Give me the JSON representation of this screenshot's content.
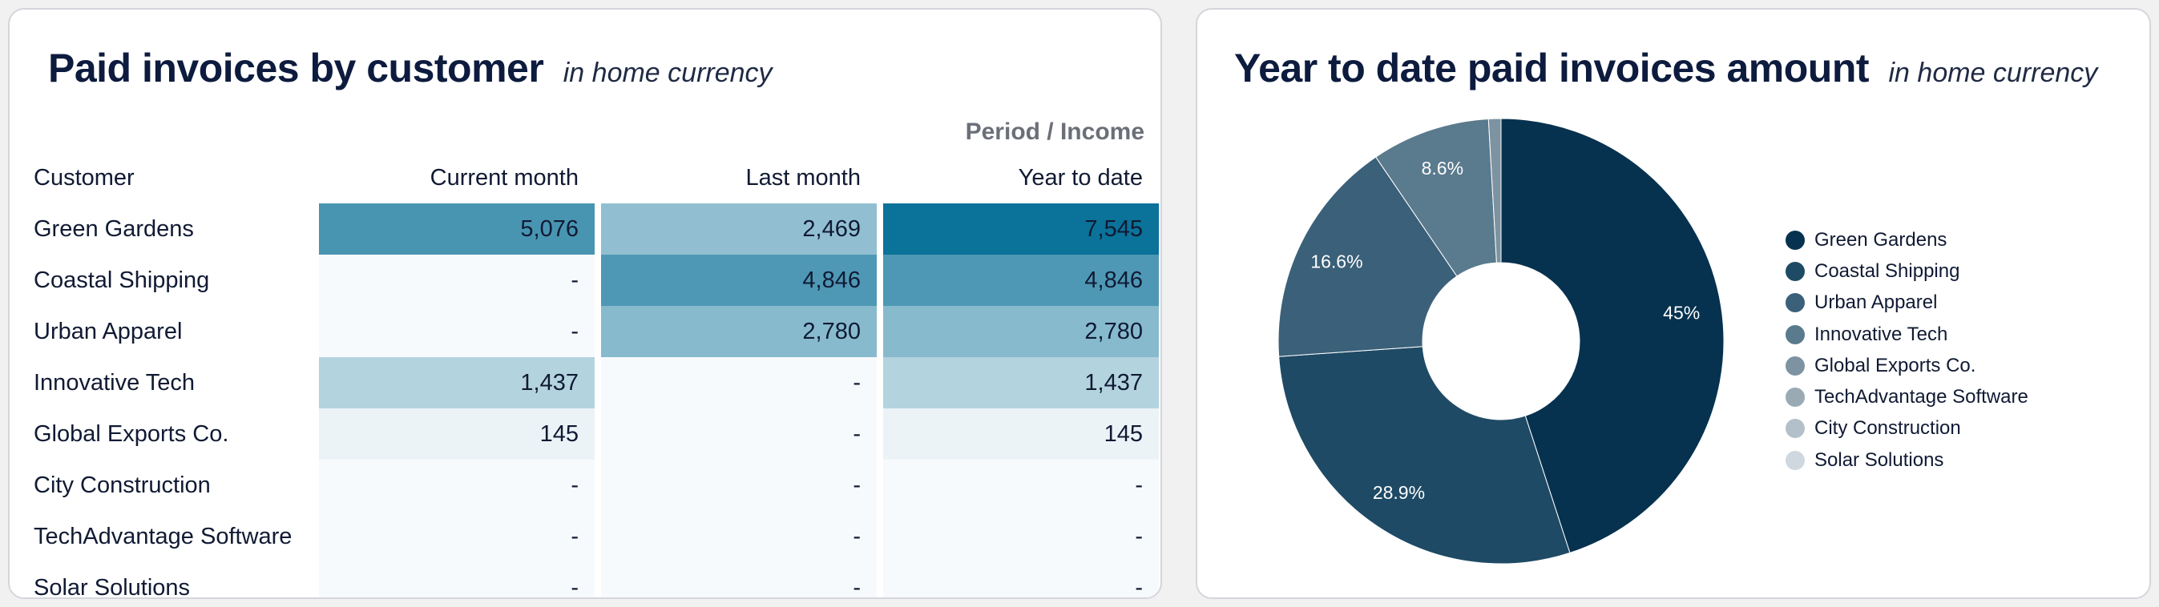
{
  "left_card": {
    "title": "Paid invoices by customer",
    "subtitle": "in home currency",
    "period_label": "Period / Income",
    "columns": [
      "Customer",
      "Current month",
      "Last month",
      "Year to date"
    ],
    "rows": [
      {
        "customer": "Green Gardens",
        "current": "5,076",
        "last": "2,469",
        "ytd": "7,545"
      },
      {
        "customer": "Coastal Shipping",
        "current": "-",
        "last": "4,846",
        "ytd": "4,846"
      },
      {
        "customer": "Urban Apparel",
        "current": "-",
        "last": "2,780",
        "ytd": "2,780"
      },
      {
        "customer": "Innovative Tech",
        "current": "1,437",
        "last": "-",
        "ytd": "1,437"
      },
      {
        "customer": "Global Exports Co.",
        "current": "145",
        "last": "-",
        "ytd": "145"
      },
      {
        "customer": "City Construction",
        "current": "-",
        "last": "-",
        "ytd": "-"
      },
      {
        "customer": "TechAdvantage Software",
        "current": "-",
        "last": "-",
        "ytd": "-"
      },
      {
        "customer": "Solar Solutions",
        "current": "-",
        "last": "-",
        "ytd": "-"
      }
    ]
  },
  "right_card": {
    "title": "Year to date paid invoices amount",
    "subtitle": "in home currency"
  },
  "colors": {
    "heat_low": "#f7fafc",
    "heat_high": "#0b7299",
    "text_dark": "#0d1b3e"
  },
  "chart_data": [
    {
      "type": "table",
      "title": "Paid invoices by customer",
      "columns": [
        "Current month",
        "Last month",
        "Year to date"
      ],
      "categories": [
        "Green Gardens",
        "Coastal Shipping",
        "Urban Apparel",
        "Innovative Tech",
        "Global Exports Co.",
        "City Construction",
        "TechAdvantage Software",
        "Solar Solutions"
      ],
      "series": [
        {
          "name": "Current month",
          "values": [
            5076,
            0,
            0,
            1437,
            145,
            0,
            0,
            0
          ]
        },
        {
          "name": "Last month",
          "values": [
            2469,
            4846,
            2780,
            0,
            0,
            0,
            0,
            0
          ]
        },
        {
          "name": "Year to date",
          "values": [
            7545,
            4846,
            2780,
            1437,
            145,
            0,
            0,
            0
          ]
        }
      ]
    },
    {
      "type": "pie",
      "title": "Year to date paid invoices amount",
      "donut": true,
      "categories": [
        "Green Gardens",
        "Coastal Shipping",
        "Urban Apparel",
        "Innovative Tech",
        "Global Exports Co.",
        "TechAdvantage Software",
        "City Construction",
        "Solar Solutions"
      ],
      "values": [
        45,
        28.9,
        16.6,
        8.6,
        0.9,
        0,
        0,
        0
      ],
      "value_labels": [
        "45%",
        "28.9%",
        "16.6%",
        "8.6%",
        "",
        "",
        "",
        ""
      ],
      "colors": [
        "#06324f",
        "#1f4a65",
        "#3b6079",
        "#5a7a8d",
        "#7d93a2",
        "#9aaab5",
        "#b3c0c9",
        "#cfd8de"
      ],
      "legend": "right"
    }
  ]
}
